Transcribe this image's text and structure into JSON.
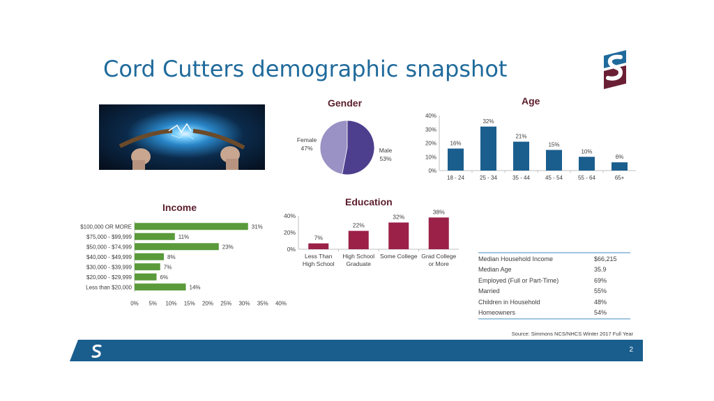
{
  "title": "Cord Cutters demographic snapshot",
  "colors": {
    "title": "#1f6a9b",
    "section_title": "#5a1d2c",
    "age": "#1a5e8e",
    "income": "#5a9a3a",
    "education": "#9b2148",
    "pie_female": "#9a92c4",
    "pie_male": "#4d3f8e",
    "footer": "#1a5e8e"
  },
  "photo": {
    "description_icon": "electric-cable-photo"
  },
  "chart_data": [
    {
      "id": "gender",
      "type": "pie",
      "title": "Gender",
      "slices": [
        {
          "label": "Female",
          "value": 47,
          "display": "47%"
        },
        {
          "label": "Male",
          "value": 53,
          "display": "53%"
        }
      ]
    },
    {
      "id": "age",
      "type": "bar",
      "title": "Age",
      "categories": [
        "18 - 24",
        "25 - 34",
        "35 - 44",
        "45 - 54",
        "55 - 64",
        "65+"
      ],
      "values": [
        16,
        32,
        21,
        15,
        10,
        6
      ],
      "data_labels": [
        "16%",
        "32%",
        "21%",
        "15%",
        "10%",
        "6%"
      ],
      "ylim": [
        0,
        40
      ],
      "yticks": [
        "0%",
        "10%",
        "20%",
        "30%",
        "40%"
      ],
      "grid": false
    },
    {
      "id": "income",
      "type": "bar",
      "orientation": "horizontal",
      "title": "Income",
      "categories": [
        "$100,000 OR MORE",
        "$75,000 - $99,999",
        "$50,000 - $74,999",
        "$40,000 - $49,999",
        "$30,000 - $39,999",
        "$20,000 - $29,999",
        "Less than $20,000"
      ],
      "values": [
        31,
        11,
        23,
        8,
        7,
        6,
        14
      ],
      "data_labels": [
        "31%",
        "11%",
        "23%",
        "8%",
        "7%",
        "6%",
        "14%"
      ],
      "xlim": [
        0,
        40
      ],
      "xticks": [
        "0%",
        "5%",
        "10%",
        "15%",
        "20%",
        "25%",
        "30%",
        "35%",
        "40%"
      ],
      "grid": false
    },
    {
      "id": "education",
      "type": "bar",
      "title": "Education",
      "categories": [
        [
          "Less Than",
          "High School"
        ],
        [
          "High School",
          "Graduate"
        ],
        [
          "Some College"
        ],
        [
          "Grad College",
          "or More"
        ]
      ],
      "values": [
        7,
        22,
        32,
        38
      ],
      "data_labels": [
        "7%",
        "22%",
        "32%",
        "38%"
      ],
      "ylim": [
        0,
        40
      ],
      "yticks": [
        "0%",
        "20%",
        "40%"
      ],
      "grid": false
    }
  ],
  "summary": [
    {
      "label": "Median Household Income",
      "value": "$66,215"
    },
    {
      "label": "Median Age",
      "value": "35.9"
    },
    {
      "label": "Employed (Full or Part-Time)",
      "value": "69%"
    },
    {
      "label": "Married",
      "value": "55%"
    },
    {
      "label": "Children in Household",
      "value": "48%"
    },
    {
      "label": "Homeowners",
      "value": "54%"
    }
  ],
  "source": "Source: Simmons NCS/NHCS Winter 2017 Full Year",
  "page_number": "2"
}
